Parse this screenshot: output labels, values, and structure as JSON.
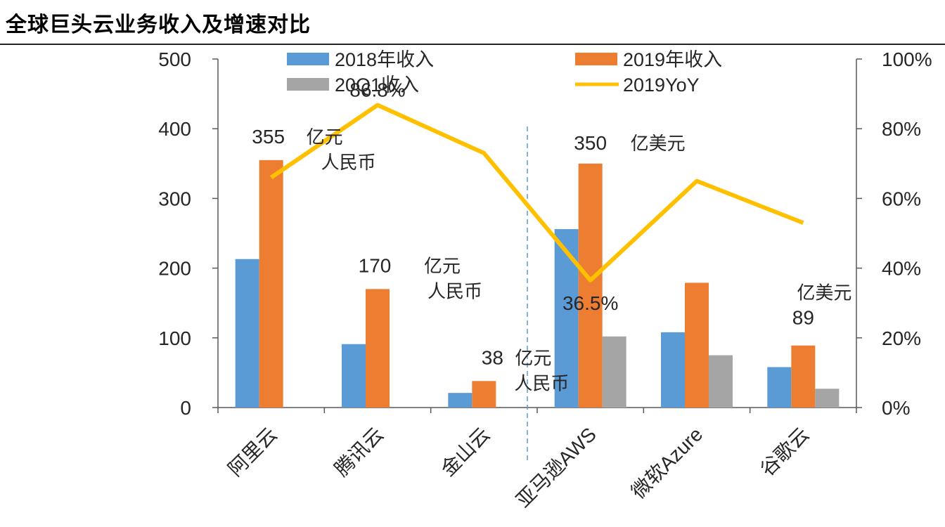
{
  "title": "全球巨头云业务收入及增速对比",
  "colors": {
    "rev2018": "#5B9BD5",
    "rev2019": "#ED7D31",
    "rev20Q1": "#A5A5A5",
    "yoy2019": "#FFC000",
    "axis": "#595959",
    "divider": "#5B9BD5",
    "text": "#262626"
  },
  "chart_data": {
    "type": "bar",
    "title": "全球巨头云业务收入及增速对比",
    "categories": [
      "阿里云",
      "腾讯云",
      "金山云",
      "亚马逊AWS",
      "微软Azure",
      "谷歌云"
    ],
    "series": [
      {
        "name": "2018年收入",
        "type": "bar",
        "axis": "left",
        "values": [
          213,
          91,
          21,
          256,
          108,
          58
        ]
      },
      {
        "name": "2019年收入",
        "type": "bar",
        "axis": "left",
        "values": [
          355,
          170,
          38,
          350,
          179,
          89
        ]
      },
      {
        "name": "20Q1收入",
        "type": "bar",
        "axis": "left",
        "values": [
          null,
          null,
          null,
          102,
          75,
          27
        ]
      },
      {
        "name": "2019YoY",
        "type": "line",
        "axis": "right",
        "values": [
          0.66,
          0.868,
          0.73,
          0.365,
          0.65,
          0.53
        ]
      }
    ],
    "left_axis": {
      "ylim": [
        0,
        500
      ],
      "ticks": [
        "0",
        "100",
        "200",
        "300",
        "400",
        "500"
      ]
    },
    "right_axis": {
      "ylim": [
        0,
        1
      ],
      "ticks": [
        "0%",
        "20%",
        "40%",
        "60%",
        "80%",
        "100%"
      ]
    },
    "grid": false,
    "legend": "top",
    "annotations": [
      {
        "category": 0,
        "value": "355",
        "unit": "亿元",
        "unit2": "人民币"
      },
      {
        "category": 1,
        "value": "170",
        "unit": "亿元",
        "unit2": "人民币"
      },
      {
        "category": 2,
        "value": "38",
        "unit": "亿元",
        "unit2": "人民币"
      },
      {
        "category": 3,
        "value": "350",
        "unit": "亿美元",
        "unit2": ""
      },
      {
        "category": 5,
        "value": "89",
        "unit": "亿美元",
        "unit2": ""
      }
    ],
    "yoy_labels": [
      {
        "category": 1,
        "text": "86.8%"
      },
      {
        "category": 3,
        "text": "36.5%"
      }
    ]
  }
}
